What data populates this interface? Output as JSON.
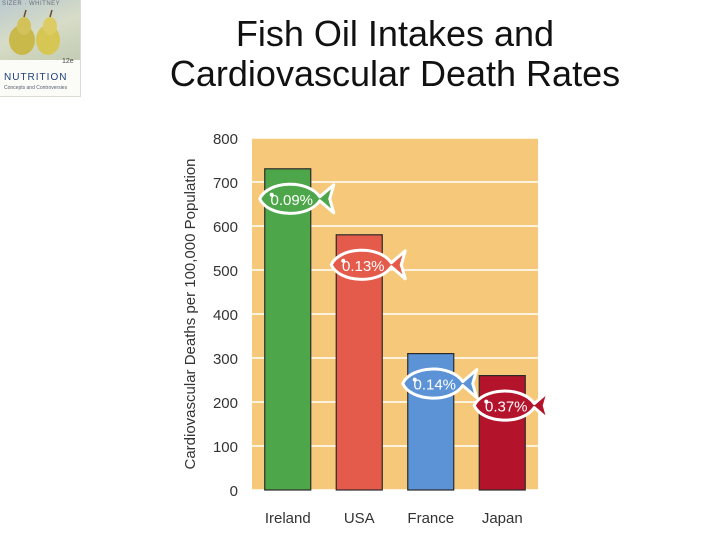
{
  "slide": {
    "title_lines": [
      "Fish Oil Intakes and",
      "Cardiovascular Death Rates"
    ]
  },
  "book_cover": {
    "authors": "SIZER · WHITNEY",
    "edition": "12e",
    "title": "NUTRITION",
    "subtitle": "Concepts and Controversies"
  },
  "chart_data": {
    "type": "bar",
    "title": "",
    "xlabel": "",
    "ylabel": "Cardiovascular Deaths per 100,000 Population",
    "ylim": [
      0,
      800
    ],
    "yticks": [
      0,
      100,
      200,
      300,
      400,
      500,
      600,
      700,
      800
    ],
    "categories": [
      "Ireland",
      "USA",
      "France",
      "Japan"
    ],
    "values": [
      730,
      580,
      310,
      260
    ],
    "bar_colors": [
      "#4ea64a",
      "#e45a4b",
      "#5b93d6",
      "#b3142c"
    ],
    "fish_oil_labels": [
      "0.09%",
      "0.13%",
      "0.14%",
      "0.37%"
    ],
    "fish_label_colors": [
      "#4ea64a",
      "#e45a4b",
      "#5b93d6",
      "#b3142c"
    ],
    "background_color": "#f6c97a",
    "grid": true,
    "legend": "none"
  }
}
